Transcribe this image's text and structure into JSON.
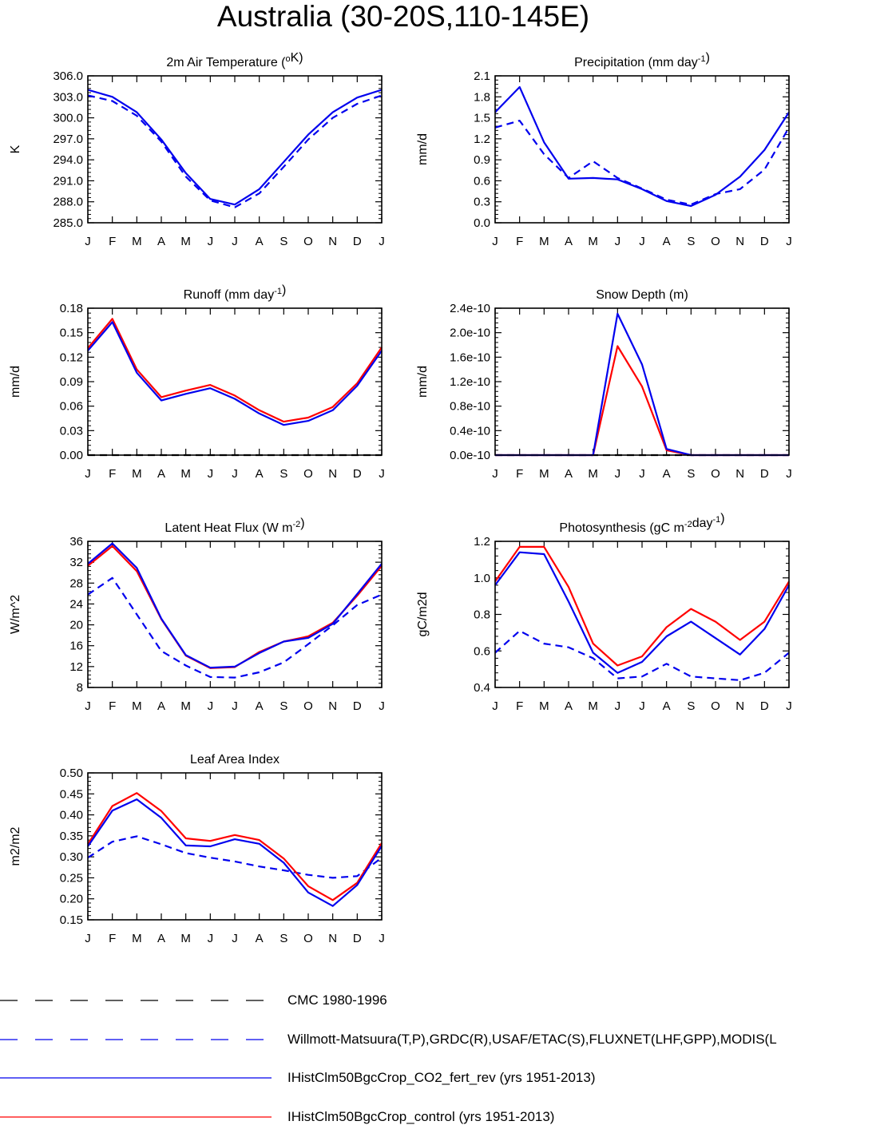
{
  "figure_title": "Australia (30-20S,110-145E)",
  "colors": {
    "obs_cmc": "#000000",
    "obs_main": "#0000ee",
    "model_co2": "#0000ee",
    "model_control": "#ff0000"
  },
  "legend": [
    {
      "label": "CMC 1980-1996",
      "color": "#000000",
      "style": "dashed"
    },
    {
      "label": "Willmott-Matsuura(T,P),GRDC(R),USAF/ETAC(S),FLUXNET(LHF,GPP),MODIS(L",
      "color": "#0000ee",
      "style": "dashed"
    },
    {
      "label": "IHistClm50BgcCrop_CO2_fert_rev (yrs 1951-2013)",
      "color": "#0000ee",
      "style": "solid"
    },
    {
      "label": "IHistClm50BgcCrop_control (yrs 1951-2013)",
      "color": "#ff0000",
      "style": "solid"
    }
  ],
  "chart_data": [
    {
      "type": "line",
      "title": "2m Air Temperature (<sup>o</sup>K)",
      "ylabel": "K",
      "x": [
        "J",
        "F",
        "M",
        "A",
        "M",
        "J",
        "J",
        "A",
        "S",
        "O",
        "N",
        "D",
        "J"
      ],
      "ylim": [
        285.0,
        306.0
      ],
      "yticks": [
        "285.0",
        "288.0",
        "291.0",
        "294.0",
        "297.0",
        "300.0",
        "303.0",
        "306.0"
      ],
      "series": [
        {
          "role": "obs",
          "color": "#0000ee",
          "style": "dashed",
          "values": [
            303.2,
            302.4,
            300.3,
            296.6,
            291.6,
            288.2,
            287.2,
            289.2,
            293.0,
            296.9,
            300.0,
            302.0,
            303.2
          ]
        },
        {
          "role": "co2",
          "color": "#0000ee",
          "style": "solid",
          "values": [
            304.0,
            303.0,
            300.8,
            296.9,
            292.1,
            288.4,
            287.6,
            289.8,
            293.7,
            297.6,
            300.8,
            302.9,
            304.0
          ]
        }
      ]
    },
    {
      "type": "line",
      "title": "Precipitation (mm day<sup>-1</sup>)",
      "ylabel": "mm/d",
      "x": [
        "J",
        "F",
        "M",
        "A",
        "M",
        "J",
        "J",
        "A",
        "S",
        "O",
        "N",
        "D",
        "J"
      ],
      "ylim": [
        0.0,
        2.1
      ],
      "yticks": [
        "0.0",
        "0.3",
        "0.6",
        "0.9",
        "1.2",
        "1.5",
        "1.8",
        "2.1"
      ],
      "series": [
        {
          "role": "obs",
          "color": "#0000ee",
          "style": "dashed",
          "values": [
            1.36,
            1.46,
            0.98,
            0.64,
            0.88,
            0.64,
            0.49,
            0.33,
            0.26,
            0.41,
            0.48,
            0.76,
            1.36
          ]
        },
        {
          "role": "co2",
          "color": "#0000ee",
          "style": "solid",
          "values": [
            1.58,
            1.94,
            1.15,
            0.63,
            0.64,
            0.62,
            0.48,
            0.31,
            0.24,
            0.4,
            0.66,
            1.04,
            1.58
          ]
        }
      ]
    },
    {
      "type": "line",
      "title": "Runoff (mm day<sup>-1</sup>)",
      "ylabel": "mm/d",
      "x": [
        "J",
        "F",
        "M",
        "A",
        "M",
        "J",
        "J",
        "A",
        "S",
        "O",
        "N",
        "D",
        "J"
      ],
      "ylim": [
        0.0,
        0.18
      ],
      "yticks": [
        "0.00",
        "0.03",
        "0.06",
        "0.09",
        "0.12",
        "0.15",
        "0.18"
      ],
      "series": [
        {
          "role": "obs",
          "color": "#000000",
          "style": "dashed",
          "values": [
            0.0,
            0.0,
            0.0,
            0.0,
            0.0,
            0.0,
            0.0,
            0.0,
            0.0,
            0.0,
            0.0,
            0.0,
            0.0
          ]
        },
        {
          "role": "control",
          "color": "#ff0000",
          "style": "solid",
          "values": [
            0.131,
            0.167,
            0.105,
            0.071,
            0.079,
            0.086,
            0.073,
            0.055,
            0.041,
            0.046,
            0.059,
            0.088,
            0.132
          ]
        },
        {
          "role": "co2",
          "color": "#0000ee",
          "style": "solid",
          "values": [
            0.128,
            0.163,
            0.101,
            0.067,
            0.075,
            0.082,
            0.069,
            0.051,
            0.037,
            0.042,
            0.055,
            0.085,
            0.128
          ]
        }
      ]
    },
    {
      "type": "line",
      "title": "Snow Depth (m)",
      "ylabel": "mm/d",
      "x": [
        "J",
        "F",
        "M",
        "A",
        "M",
        "J",
        "J",
        "A",
        "S",
        "O",
        "N",
        "D",
        "J"
      ],
      "ylim": [
        0.0,
        2.4e-10
      ],
      "yticks": [
        "0.0e-10",
        "0.4e-10",
        "0.8e-10",
        "1.2e-10",
        "1.6e-10",
        "2.0e-10",
        "2.4e-10"
      ],
      "series": [
        {
          "role": "obs",
          "color": "#000000",
          "style": "dashed",
          "values": [
            0,
            0,
            0,
            0,
            0,
            0,
            0,
            0,
            0,
            0,
            0,
            0,
            0
          ]
        },
        {
          "role": "control",
          "color": "#ff0000",
          "style": "solid",
          "values": [
            0,
            0,
            0,
            0,
            0,
            1.78e-10,
            1.12e-10,
            8e-12,
            0,
            0,
            0,
            0,
            0
          ]
        },
        {
          "role": "co2",
          "color": "#0000ee",
          "style": "solid",
          "values": [
            0,
            0,
            0,
            0,
            0,
            2.31e-10,
            1.48e-10,
            1e-11,
            0,
            0,
            0,
            0,
            0
          ]
        }
      ]
    },
    {
      "type": "line",
      "title": "Latent Heat Flux (W m<sup>-2</sup>)",
      "ylabel": "W/m^2",
      "x": [
        "J",
        "F",
        "M",
        "A",
        "M",
        "J",
        "J",
        "A",
        "S",
        "O",
        "N",
        "D",
        "J"
      ],
      "ylim": [
        8,
        36
      ],
      "yticks": [
        "8",
        "12",
        "16",
        "20",
        "24",
        "28",
        "32",
        "36"
      ],
      "series": [
        {
          "role": "obs",
          "color": "#0000ee",
          "style": "dashed",
          "values": [
            25.8,
            29.0,
            22.0,
            15.0,
            12.2,
            10.0,
            9.9,
            10.9,
            12.8,
            16.3,
            19.9,
            23.8,
            25.8
          ]
        },
        {
          "role": "control",
          "color": "#ff0000",
          "style": "solid",
          "values": [
            31.3,
            35.1,
            30.3,
            21.1,
            14.1,
            11.7,
            11.9,
            14.8,
            16.8,
            17.8,
            20.4,
            25.6,
            31.3
          ]
        },
        {
          "role": "co2",
          "color": "#0000ee",
          "style": "solid",
          "values": [
            31.7,
            35.6,
            30.9,
            21.2,
            14.2,
            11.8,
            12.0,
            14.6,
            16.8,
            17.5,
            20.2,
            25.9,
            31.7
          ]
        }
      ]
    },
    {
      "type": "line",
      "title": "Photosynthesis (gC m<sup>-2</sup>day<sup>-1</sup>)",
      "ylabel": "gC/m2d",
      "x": [
        "J",
        "F",
        "M",
        "A",
        "M",
        "J",
        "J",
        "A",
        "S",
        "O",
        "N",
        "D",
        "J"
      ],
      "ylim": [
        0.4,
        1.2
      ],
      "yticks": [
        "0.4",
        "0.6",
        "0.8",
        "1.0",
        "1.2"
      ],
      "series": [
        {
          "role": "obs",
          "color": "#0000ee",
          "style": "dashed",
          "values": [
            0.59,
            0.71,
            0.64,
            0.62,
            0.56,
            0.45,
            0.46,
            0.53,
            0.46,
            0.45,
            0.44,
            0.48,
            0.59
          ]
        },
        {
          "role": "control",
          "color": "#ff0000",
          "style": "solid",
          "values": [
            0.98,
            1.17,
            1.17,
            0.95,
            0.64,
            0.52,
            0.57,
            0.73,
            0.83,
            0.76,
            0.66,
            0.76,
            0.98
          ]
        },
        {
          "role": "co2",
          "color": "#0000ee",
          "style": "solid",
          "values": [
            0.96,
            1.14,
            1.13,
            0.87,
            0.59,
            0.48,
            0.54,
            0.68,
            0.76,
            0.67,
            0.58,
            0.72,
            0.96
          ]
        }
      ]
    },
    {
      "type": "line",
      "title": "Leaf Area Index",
      "ylabel": "m2/m2",
      "x": [
        "J",
        "F",
        "M",
        "A",
        "M",
        "J",
        "J",
        "A",
        "S",
        "O",
        "N",
        "D",
        "J"
      ],
      "ylim": [
        0.15,
        0.5
      ],
      "yticks": [
        "0.15",
        "0.20",
        "0.25",
        "0.30",
        "0.35",
        "0.40",
        "0.45",
        "0.50"
      ],
      "series": [
        {
          "role": "obs",
          "color": "#0000ee",
          "style": "dashed",
          "values": [
            0.298,
            0.336,
            0.349,
            0.33,
            0.309,
            0.298,
            0.289,
            0.277,
            0.268,
            0.257,
            0.25,
            0.254,
            0.298
          ]
        },
        {
          "role": "control",
          "color": "#ff0000",
          "style": "solid",
          "values": [
            0.33,
            0.421,
            0.452,
            0.409,
            0.344,
            0.338,
            0.352,
            0.34,
            0.296,
            0.23,
            0.197,
            0.238,
            0.333
          ]
        },
        {
          "role": "co2",
          "color": "#0000ee",
          "style": "solid",
          "values": [
            0.325,
            0.41,
            0.437,
            0.393,
            0.327,
            0.325,
            0.342,
            0.331,
            0.286,
            0.215,
            0.183,
            0.233,
            0.326
          ]
        }
      ]
    }
  ]
}
